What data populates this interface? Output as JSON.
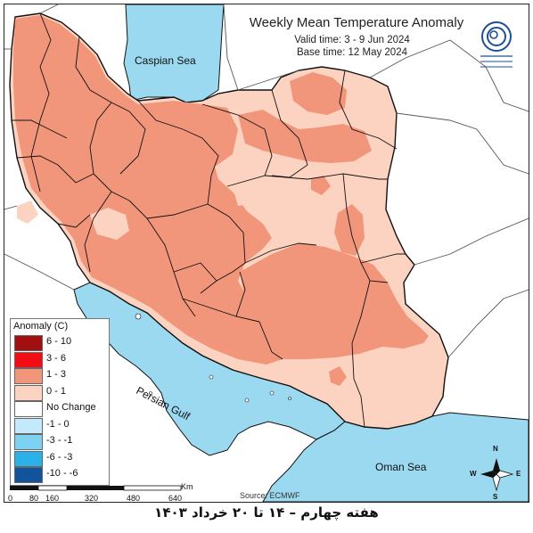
{
  "map": {
    "title": "Weekly Mean Temperature Anomaly",
    "valid_time": "Valid time: 3 - 9 Jun 2024",
    "base_time": "Base time: 12 May 2024",
    "source": "Source: ECMWF",
    "caption": "هفته چهارم – ۱۴ تا ۲۰ خرداد ۱۴۰۳",
    "labels": {
      "caspian": "Caspian Sea",
      "persian_gulf": "Persian Gulf",
      "oman": "Oman Sea"
    },
    "compass": {
      "n": "N",
      "s": "S",
      "e": "E",
      "w": "W"
    },
    "colors": {
      "sea": "#9bd9f0",
      "land_outside": "#ffffff",
      "anom_0_1": "#fbd3c0",
      "anom_1_3": "#f2967b",
      "border": "#111111"
    },
    "logo_text": "National Center for Climate and Drought Crisis Management"
  },
  "legend": {
    "title": "Anomaly (C)",
    "items": [
      {
        "label": "6 - 10",
        "color": "#a10f11"
      },
      {
        "label": "3 - 6",
        "color": "#f20c13"
      },
      {
        "label": "1 - 3",
        "color": "#f2967b"
      },
      {
        "label": "0 - 1",
        "color": "#fbd3c0"
      },
      {
        "label": "No Change",
        "color": "#ffffff"
      },
      {
        "label": "-1 - 0",
        "color": "#c3e9fa"
      },
      {
        "label": "-3 - -1",
        "color": "#7fd1f2"
      },
      {
        "label": "-6 - -3",
        "color": "#2ab1e8"
      },
      {
        "label": "-10 - -6",
        "color": "#10559c"
      }
    ]
  },
  "scale": {
    "unit": "Km",
    "ticks": [
      "0",
      "80",
      "160",
      "320",
      "480",
      "640"
    ]
  }
}
